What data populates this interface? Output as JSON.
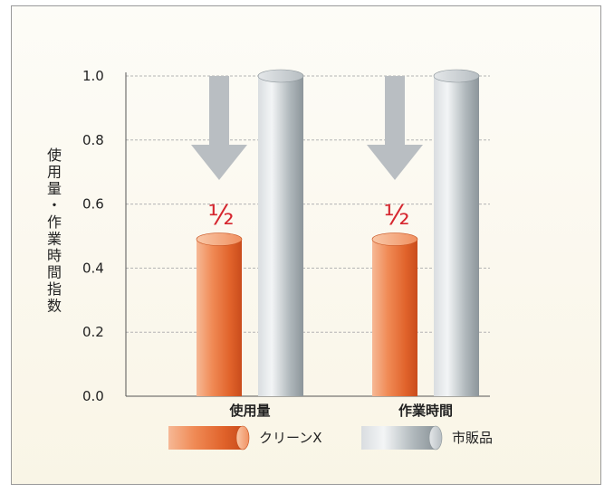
{
  "chart_data": {
    "type": "bar",
    "title": "",
    "ylabel": "使用量・作業時間指数",
    "xlabel": "",
    "categories": [
      "使用量",
      "作業時間"
    ],
    "series": [
      {
        "name": "クリーンX",
        "values": [
          0.49,
          0.49
        ],
        "color": "#e8703a"
      },
      {
        "name": "市販品",
        "values": [
          1.0,
          1.0
        ],
        "color": "#aeb6ba"
      }
    ],
    "ylim": [
      0.0,
      1.0
    ],
    "yticks": [
      "0.0",
      "0.2",
      "0.4",
      "0.6",
      "0.8",
      "1.0"
    ],
    "grid": true,
    "legend_position": "bottom",
    "annotations": [
      "½",
      "½"
    ],
    "arrow_color": "#b9bec2",
    "annotation_color": "#d6262f"
  }
}
